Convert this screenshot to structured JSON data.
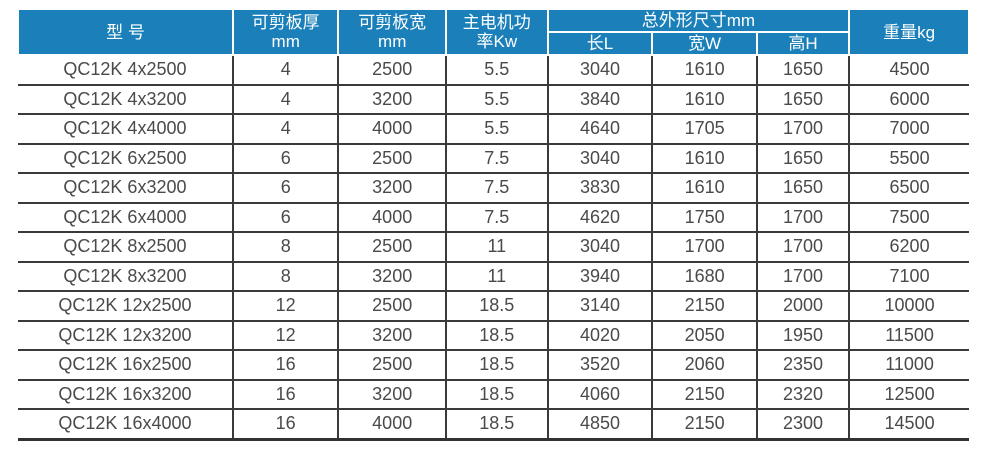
{
  "colors": {
    "header_bg": "#1b80ba",
    "header_text": "#ffffff",
    "grid_line": "#3a3a3a",
    "body_text": "#4a4a4a"
  },
  "table": {
    "header": {
      "model": "型 号",
      "thickness_line1": "可剪板厚",
      "thickness_line2": "mm",
      "cut_width_line1": "可剪板宽",
      "cut_width_line2": "mm",
      "power_line1": "主电机功",
      "power_line2": "率Kw",
      "dimensions_group": "总外形尺寸mm",
      "dim_length": "长L",
      "dim_width": "宽W",
      "dim_height": "高H",
      "weight": "重量kg"
    },
    "rows": [
      [
        "QC12K 4x2500",
        "4",
        "2500",
        "5.5",
        "3040",
        "1610",
        "1650",
        "4500"
      ],
      [
        "QC12K 4x3200",
        "4",
        "3200",
        "5.5",
        "3840",
        "1610",
        "1650",
        "6000"
      ],
      [
        "QC12K 4x4000",
        "4",
        "4000",
        "5.5",
        "4640",
        "1705",
        "1700",
        "7000"
      ],
      [
        "QC12K 6x2500",
        "6",
        "2500",
        "7.5",
        "3040",
        "1610",
        "1650",
        "5500"
      ],
      [
        "QC12K 6x3200",
        "6",
        "3200",
        "7.5",
        "3830",
        "1610",
        "1650",
        "6500"
      ],
      [
        "QC12K 6x4000",
        "6",
        "4000",
        "7.5",
        "4620",
        "1750",
        "1700",
        "7500"
      ],
      [
        "QC12K 8x2500",
        "8",
        "2500",
        "11",
        "3040",
        "1700",
        "1700",
        "6200"
      ],
      [
        "QC12K 8x3200",
        "8",
        "3200",
        "11",
        "3940",
        "1680",
        "1700",
        "7100"
      ],
      [
        "QC12K 12x2500",
        "12",
        "2500",
        "18.5",
        "3140",
        "2150",
        "2000",
        "10000"
      ],
      [
        "QC12K 12x3200",
        "12",
        "3200",
        "18.5",
        "4020",
        "2050",
        "1950",
        "11500"
      ],
      [
        "QC12K 16x2500",
        "16",
        "2500",
        "18.5",
        "3520",
        "2060",
        "2350",
        "11000"
      ],
      [
        "QC12K 16x3200",
        "16",
        "3200",
        "18.5",
        "4060",
        "2150",
        "2320",
        "12500"
      ],
      [
        "QC12K 16x4000",
        "16",
        "4000",
        "18.5",
        "4850",
        "2150",
        "2300",
        "14500"
      ]
    ],
    "cell_names": "cell-model,cell-thickness,cell-cut-width,cell-power,cell-length,cell-width,cell-height,cell-weight"
  }
}
